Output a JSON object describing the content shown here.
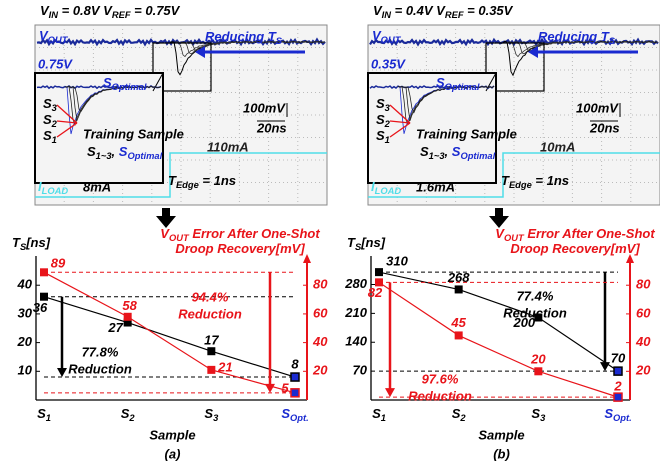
{
  "scope_panels": [
    {
      "title": [
        "V",
        {
          "sub": "IN"
        },
        " = 0.8V V",
        {
          "sub": "REF"
        },
        " = 0.75V"
      ],
      "vout": [
        "V",
        {
          "sub": "OUT"
        }
      ],
      "vref": "0.75V",
      "reducing": [
        "Reducing T",
        {
          "sub": "S"
        }
      ],
      "s_optimal": [
        "S",
        {
          "sub": "Optimal"
        }
      ],
      "scale_v": "100mV",
      "scale_t": "20ns",
      "s_labels": [
        [
          "S",
          {
            "sub": "3"
          }
        ],
        [
          "S",
          {
            "sub": "2"
          }
        ],
        [
          "S",
          {
            "sub": "1"
          }
        ]
      ],
      "training": "Training Sample",
      "training_sub": [
        "S",
        {
          "sub": "1~3"
        },
        ", ",
        "S",
        {
          "sub": "Optimal"
        }
      ],
      "load_high": "110mA",
      "iload": [
        "I",
        {
          "sub": "LOAD"
        }
      ],
      "load_low": "8mA",
      "tedge": [
        "T",
        {
          "sub": "Edge"
        },
        " = 1ns"
      ]
    },
    {
      "title": [
        "V",
        {
          "sub": "IN"
        },
        " = 0.4V V",
        {
          "sub": "REF"
        },
        " = 0.35V"
      ],
      "vout": [
        "V",
        {
          "sub": "OUT"
        }
      ],
      "vref": "0.35V",
      "reducing": [
        "Reducing T",
        {
          "sub": "S"
        }
      ],
      "s_optimal": [
        "S",
        {
          "sub": "Optimal"
        }
      ],
      "scale_v": "100mV",
      "scale_t": "20ns",
      "s_labels": [
        [
          "S",
          {
            "sub": "3"
          }
        ],
        [
          "S",
          {
            "sub": "2"
          }
        ],
        [
          "S",
          {
            "sub": "1"
          }
        ]
      ],
      "training": "Training Sample",
      "training_sub": [
        "S",
        {
          "sub": "1~3"
        },
        ", ",
        "S",
        {
          "sub": "Optimal"
        }
      ],
      "load_high": "10mA",
      "iload": [
        "I",
        {
          "sub": "LOAD"
        }
      ],
      "load_low": "1.6mA",
      "tedge": [
        "T",
        {
          "sub": "Edge"
        },
        " = 1ns"
      ]
    }
  ],
  "chart_data": [
    {
      "type": "line",
      "panel_label": "(a)",
      "x_label": "Sample",
      "y_label": [
        "T",
        {
          "sub": "S"
        },
        "[ns]"
      ],
      "y2_label": [
        [
          "V",
          {
            "sub": "OUT"
          },
          " Error After One-Shot"
        ],
        [
          "Droop Recovery[mV]"
        ]
      ],
      "categories": [
        [
          "S",
          {
            "sub": "1"
          }
        ],
        [
          "S",
          {
            "sub": "2"
          }
        ],
        [
          "S",
          {
            "sub": "3"
          }
        ],
        [
          "S",
          {
            "sub": "Opt."
          }
        ]
      ],
      "ylim": [
        0,
        46
      ],
      "yticks": [
        10,
        20,
        30,
        40
      ],
      "y2lim": [
        0,
        92
      ],
      "y2ticks": [
        20,
        40,
        60,
        80
      ],
      "series": [
        {
          "color": "#000000",
          "values": [
            36,
            27,
            17,
            8
          ]
        },
        {
          "color": "#e8141a",
          "axis": "y2",
          "values": [
            89,
            58,
            21,
            5
          ]
        }
      ],
      "annotations": [
        [
          "77.8%",
          "Reduction"
        ],
        [
          "94.4%",
          "Reduction"
        ]
      ]
    },
    {
      "type": "line",
      "panel_label": "(b)",
      "x_label": "Sample",
      "y_label": [
        "T",
        {
          "sub": "S"
        },
        "[ns]"
      ],
      "y2_label": [
        [
          "V",
          {
            "sub": "OUT"
          },
          " Error After One-Shot"
        ],
        [
          "Droop Recovery[mV]"
        ]
      ],
      "categories": [
        [
          "S",
          {
            "sub": "1"
          }
        ],
        [
          "S",
          {
            "sub": "2"
          }
        ],
        [
          "S",
          {
            "sub": "3"
          }
        ],
        [
          "S",
          {
            "sub": "Opt."
          }
        ]
      ],
      "ylim": [
        0,
        320
      ],
      "yticks": [
        70,
        140,
        210,
        280
      ],
      "y2lim": [
        0,
        92
      ],
      "y2ticks": [
        20,
        40,
        60,
        80
      ],
      "series": [
        {
          "color": "#000000",
          "values": [
            310,
            268,
            200,
            70
          ]
        },
        {
          "color": "#e8141a",
          "axis": "y2",
          "values": [
            82,
            45,
            20,
            2
          ]
        }
      ],
      "annotations": [
        [
          "77.4%",
          "Reduction"
        ],
        [
          "97.6%",
          "Reduction"
        ]
      ]
    }
  ]
}
